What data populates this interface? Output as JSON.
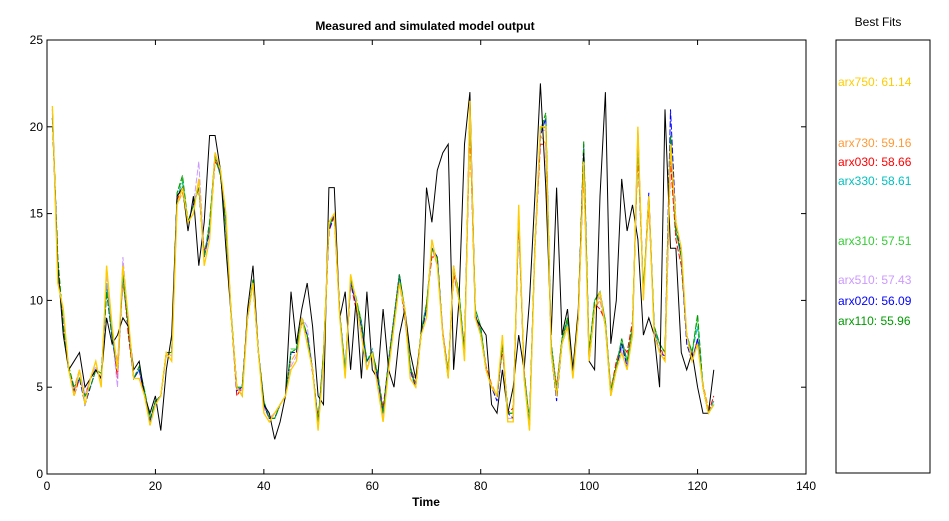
{
  "chart_data": {
    "type": "line",
    "title": "Measured and simulated model output",
    "xlabel": "Time",
    "ylabel": "",
    "xlim": [
      0,
      140
    ],
    "ylim": [
      0,
      25
    ],
    "xticks": [
      "0",
      "20",
      "40",
      "60",
      "80",
      "100",
      "120",
      "140"
    ],
    "yticks": [
      "0",
      "5",
      "10",
      "15",
      "20",
      "25"
    ],
    "grid": false,
    "legend_position": "right",
    "measured": {
      "color": "#000000",
      "x": [
        1,
        2,
        3,
        4,
        5,
        6,
        7,
        8,
        9,
        10,
        11,
        12,
        13,
        14,
        15,
        16,
        17,
        18,
        19,
        20,
        21,
        22,
        23,
        24,
        25,
        26,
        27,
        28,
        29,
        30,
        31,
        32,
        33,
        34,
        35,
        36,
        37,
        38,
        39,
        40,
        41,
        42,
        43,
        44,
        45,
        46,
        47,
        48,
        49,
        50,
        51,
        52,
        53,
        54,
        55,
        56,
        57,
        58,
        59,
        60,
        61,
        62,
        63,
        64,
        65,
        66,
        67,
        68,
        69,
        70,
        71,
        72,
        73,
        74,
        75,
        76,
        77,
        78,
        79,
        80,
        81,
        82,
        83,
        84,
        85,
        86,
        87,
        88,
        89,
        90,
        91,
        92,
        93,
        94,
        95,
        96,
        97,
        98,
        99,
        100,
        101,
        102,
        103,
        104,
        105,
        106,
        107,
        108,
        109,
        110,
        111,
        112,
        113,
        114,
        115,
        116,
        117,
        118,
        119,
        120,
        121,
        122,
        123
      ],
      "y": [
        21,
        12,
        8,
        6,
        6.5,
        7,
        5,
        5.5,
        6,
        5.5,
        9,
        7.5,
        8,
        9,
        8.5,
        6,
        6.5,
        4.5,
        3.5,
        4.5,
        2.5,
        6,
        8,
        16,
        16.5,
        14,
        16,
        12,
        14.5,
        19.5,
        19.5,
        17.5,
        13,
        9,
        5,
        4.5,
        9.5,
        12,
        7,
        4,
        3.5,
        2,
        3,
        4.5,
        10.5,
        7.5,
        9.5,
        11,
        8.5,
        4.5,
        4,
        16.5,
        16.5,
        9,
        10.5,
        6,
        10,
        5.5,
        10.5,
        6,
        5.5,
        9.5,
        6,
        5,
        8,
        9.5,
        7,
        5.5,
        8,
        16.5,
        14.5,
        17.5,
        18.5,
        19,
        6,
        10,
        19,
        22,
        9,
        8.5,
        8,
        4,
        3.5,
        6,
        3.5,
        5,
        8,
        6,
        10,
        16,
        22.5,
        16.5,
        8,
        16.5,
        8,
        9.5,
        6,
        9.5,
        18.5,
        6.5,
        6,
        16,
        22,
        7.5,
        10,
        17,
        14,
        15.5,
        13.5,
        8,
        9,
        8,
        5,
        21,
        13,
        13,
        7,
        6,
        7,
        5,
        3.5,
        3.5,
        6
      ]
    },
    "series": [
      {
        "name": "arx750",
        "fit": "61.14",
        "label": "arx750: 61.14",
        "color": "#FFCC00",
        "y": [
          21.2,
          11,
          9.5,
          6,
          4.5,
          6,
          4,
          5.5,
          6.5,
          5,
          12,
          8.5,
          6,
          12,
          9,
          5.5,
          5.5,
          4.5,
          2.8,
          4,
          4.5,
          7,
          6.5,
          15.5,
          16.5,
          14.5,
          15,
          17,
          12,
          13.5,
          18.5,
          17.5,
          15,
          9,
          5,
          4.5,
          9,
          11,
          7,
          3.5,
          3,
          3.5,
          4,
          4.5,
          6,
          6.5,
          9,
          7.5,
          6,
          2.5,
          6.5,
          14.5,
          15,
          9,
          5.5,
          11.5,
          10,
          8,
          6,
          7,
          5,
          3,
          6,
          8.5,
          11,
          9.5,
          5.5,
          5,
          8,
          9,
          13.5,
          12,
          8,
          5.5,
          12,
          10,
          6.5,
          21.5,
          9,
          8,
          6,
          5,
          4.5,
          8,
          3,
          3,
          15.5,
          5.5,
          2.5,
          13,
          20,
          20,
          7,
          4.5,
          7.5,
          8.5,
          5.5,
          9,
          18,
          6.5,
          9.5,
          10.5,
          8.5,
          4.5,
          6,
          7,
          6,
          8,
          20,
          10,
          16,
          8,
          7,
          6.5,
          19,
          14.5,
          13,
          8,
          6.5,
          7.5,
          5,
          3.5,
          4,
          6.5
        ]
      },
      {
        "name": "arx730",
        "fit": "59.16",
        "label": "arx730: 59.16",
        "color": "#FF9933",
        "y": [
          20.8,
          11.5,
          9,
          6,
          5,
          6,
          4.5,
          5.5,
          6,
          5.5,
          11,
          8,
          6.5,
          11,
          8.5,
          5.5,
          6,
          4.5,
          3,
          4.2,
          4.5,
          6.8,
          7,
          15.5,
          16.2,
          14.5,
          15.5,
          16.5,
          12.5,
          14,
          18.2,
          17.2,
          14.5,
          9,
          5,
          4.8,
          9.2,
          11,
          7,
          3.8,
          3.2,
          3.5,
          4,
          4.5,
          6.5,
          7,
          8.8,
          8,
          6,
          3,
          6.5,
          14.2,
          14.8,
          9,
          6,
          11,
          10,
          8,
          6.5,
          7,
          5.5,
          3.5,
          6.5,
          8.8,
          11,
          9,
          6,
          5.5,
          8,
          9.5,
          13,
          12,
          8.2,
          6,
          11.5,
          10,
          7,
          20.5,
          9,
          8,
          6.2,
          5.2,
          4.5,
          7.5,
          3.5,
          3.5,
          14.8,
          5.8,
          3,
          13,
          19.5,
          19,
          7.5,
          5,
          7.5,
          8.5,
          6,
          9,
          18,
          7,
          9.5,
          10,
          8.5,
          5,
          6.2,
          7.5,
          6.5,
          8.5,
          19,
          10.5,
          15.5,
          8.2,
          7.5,
          7,
          18.5,
          14,
          12.5,
          8,
          6.8,
          7.5,
          5.2,
          3.8,
          4.2,
          6.2
        ]
      },
      {
        "name": "arx030",
        "fit": "58.66",
        "label": "arx030: 58.66",
        "color": "#FF0000",
        "y": [
          20.5,
          12,
          8.5,
          6,
          4.5,
          5.5,
          4.5,
          5.5,
          6,
          5.5,
          11,
          8,
          5.5,
          11.5,
          8,
          5.5,
          6,
          4.5,
          3,
          4.2,
          4.5,
          7,
          7,
          15.8,
          16.5,
          14.5,
          15.5,
          16.5,
          12.8,
          14,
          18,
          17.5,
          14.5,
          9,
          4.5,
          5,
          9.2,
          11,
          7,
          4,
          3.2,
          3.5,
          4,
          4.5,
          7,
          7,
          8.8,
          8,
          5.8,
          3.2,
          6.5,
          14,
          14.8,
          9.2,
          5.8,
          11,
          9.5,
          8.5,
          6.5,
          7,
          5.8,
          3.8,
          6.5,
          9,
          11.5,
          9.2,
          6.2,
          5.2,
          8,
          9.8,
          12.5,
          12.5,
          8.2,
          5.8,
          11.5,
          10.2,
          7.2,
          20,
          9.2,
          8.2,
          6.2,
          5,
          4.5,
          7.2,
          3.5,
          3.8,
          14.5,
          6,
          3,
          13,
          19,
          19,
          7.5,
          5,
          7.8,
          8.8,
          6,
          9,
          17.5,
          7,
          9.8,
          9.5,
          8.8,
          4.8,
          6.5,
          7.5,
          7,
          8.8,
          18.5,
          10.5,
          15.5,
          8.5,
          7.5,
          6.5,
          18,
          13.5,
          12,
          8,
          6.5,
          7.8,
          5,
          3.5,
          4.5,
          6
        ]
      },
      {
        "name": "arx330",
        "fit": "58.61",
        "label": "arx330: 58.61",
        "color": "#00BFBF",
        "y": [
          20.5,
          12,
          8.8,
          6,
          5,
          5.5,
          4.5,
          5,
          6,
          5.5,
          11,
          7.8,
          6,
          11.5,
          8.5,
          5.5,
          6,
          4.8,
          3,
          4.2,
          4.5,
          7,
          7,
          16,
          16.8,
          14.5,
          15.5,
          16.8,
          12.5,
          14.2,
          18.5,
          17.2,
          14.5,
          9.2,
          5,
          5,
          9,
          11.2,
          7.2,
          4,
          3.2,
          3.2,
          4,
          4.5,
          7,
          7.2,
          9,
          8,
          6,
          3,
          6.8,
          14.2,
          15,
          9.2,
          6,
          11,
          10,
          8.5,
          6.5,
          7.2,
          5.5,
          3.5,
          6.5,
          9,
          11.2,
          9.5,
          6,
          5,
          8.2,
          9.5,
          13,
          12.5,
          8,
          5.8,
          11.8,
          10.2,
          7,
          20.8,
          9.2,
          8.2,
          6,
          5,
          4.5,
          7.5,
          3.5,
          3.5,
          15,
          5.8,
          3,
          13.2,
          19.8,
          20,
          7.5,
          4.8,
          7.5,
          8.8,
          6,
          9.2,
          18.5,
          7,
          10,
          10.5,
          8.5,
          4.8,
          6.2,
          7.5,
          6.5,
          8.5,
          19,
          10.5,
          16,
          8.2,
          7.5,
          7,
          19,
          14,
          12.5,
          8,
          7,
          8.5,
          5,
          3.5,
          4.2,
          6.5
        ]
      },
      {
        "name": "arx310",
        "fit": "57.51",
        "label": "arx310: 57.51",
        "color": "#33CC33",
        "y": [
          20.5,
          12.5,
          8.5,
          6.2,
          5,
          5.5,
          4.5,
          5,
          6,
          5.8,
          10.5,
          8,
          6,
          11.5,
          8.5,
          5.5,
          6.2,
          4.8,
          3.2,
          4.2,
          4.5,
          7,
          7,
          16.2,
          17,
          14.5,
          15.5,
          16.5,
          12.5,
          14.5,
          18.5,
          17.2,
          14.2,
          9.2,
          5,
          5,
          9,
          11.2,
          7,
          4.2,
          3.2,
          3.2,
          4,
          4.5,
          7.2,
          7.2,
          9,
          8,
          6,
          3,
          7,
          14.2,
          15,
          9.2,
          6,
          11.2,
          10.2,
          8.8,
          6.5,
          7,
          5.8,
          3.5,
          6.5,
          9,
          11.5,
          9.5,
          6.2,
          5,
          8.2,
          9.8,
          13,
          12.5,
          8,
          5.8,
          11.8,
          10.5,
          7,
          21,
          9.5,
          8.5,
          6,
          5,
          4.5,
          7.5,
          3.5,
          3.5,
          15,
          5.8,
          3,
          13.2,
          19.8,
          20.5,
          7.5,
          4.8,
          7.8,
          9,
          6,
          9.2,
          18.8,
          7,
          10,
          10.5,
          8.8,
          4.8,
          6.2,
          7.8,
          6.5,
          8.5,
          19.2,
          10.5,
          16,
          8.5,
          7.5,
          7,
          19.5,
          14,
          12.5,
          8,
          7,
          9,
          5,
          3.5,
          4,
          6.5
        ]
      },
      {
        "name": "arx510",
        "fit": "57.43",
        "label": "arx510: 57.43",
        "color": "#CC99FF",
        "y": [
          20.8,
          11.5,
          9,
          6,
          4.8,
          6,
          4.5,
          5.5,
          6.2,
          5.2,
          11.5,
          8,
          5,
          12.5,
          8.8,
          5.5,
          5.5,
          4.5,
          2.8,
          4,
          4.5,
          7,
          6.8,
          15.5,
          16.5,
          14.5,
          15.5,
          18,
          12.5,
          13.8,
          18.5,
          17.5,
          14.8,
          9,
          5,
          4.8,
          9,
          11,
          7,
          3.8,
          3.2,
          3.5,
          4,
          4.5,
          6.2,
          6.8,
          9,
          8.5,
          6,
          2.8,
          6.5,
          14.5,
          15,
          9,
          5.8,
          11.2,
          10,
          8,
          6.2,
          7,
          5.2,
          3.2,
          6.2,
          8.5,
          11,
          9.5,
          5.8,
          5,
          8,
          9.2,
          13.5,
          12,
          8.2,
          5.5,
          11.8,
          10,
          6.8,
          21,
          9,
          8,
          6,
          5,
          4.5,
          7.8,
          3.2,
          3.2,
          15.2,
          5.5,
          2.8,
          13,
          19.8,
          19.8,
          7.2,
          4.8,
          7.5,
          8.5,
          5.8,
          9,
          18.2,
          6.8,
          9.5,
          10.2,
          8.5,
          4.8,
          6,
          7.2,
          6.2,
          8,
          19.5,
          10.2,
          16,
          8.2,
          7,
          6.8,
          19,
          14.5,
          13,
          8,
          6.8,
          7.5,
          5,
          3.5,
          4,
          6.5
        ]
      },
      {
        "name": "arx020",
        "fit": "56.09",
        "label": "arx020: 56.09",
        "color": "#0000FF",
        "y": [
          20.5,
          12,
          8.5,
          6,
          4.8,
          5.5,
          4,
          5,
          6,
          5.5,
          10.5,
          7.8,
          6,
          11.5,
          8.5,
          5.5,
          6,
          4.5,
          3,
          4.2,
          4.5,
          7,
          7,
          16,
          16.5,
          14.5,
          15.5,
          16.5,
          12.5,
          14,
          18.5,
          17.2,
          14.5,
          9,
          4.8,
          5,
          9,
          11,
          7,
          4,
          3.2,
          3.2,
          4,
          4.5,
          7,
          7,
          8.8,
          8,
          6,
          3,
          6.8,
          14,
          15,
          9.2,
          5.8,
          11,
          9.8,
          8.5,
          6.5,
          7,
          5.5,
          3.5,
          6.5,
          9,
          11.5,
          9.2,
          6,
          5,
          8,
          9.5,
          13,
          12.5,
          8,
          5.5,
          12,
          10,
          7,
          21.5,
          9.2,
          8,
          6,
          5,
          4.2,
          7.5,
          3.5,
          3.2,
          15,
          5.5,
          2.8,
          13,
          19.5,
          20.5,
          7,
          4.2,
          7.5,
          8.5,
          5.8,
          9,
          19,
          6.5,
          9.5,
          10.5,
          8.5,
          4.5,
          6,
          7.5,
          6.2,
          8,
          19.8,
          10.2,
          16.2,
          8.2,
          7,
          6.8,
          21,
          14.5,
          12.5,
          7.5,
          6.5,
          7.8,
          5,
          3.5,
          4,
          6.5
        ]
      },
      {
        "name": "arx110",
        "fit": "55.96",
        "label": "arx110: 55.96",
        "color": "#009900",
        "y": [
          20.5,
          12.5,
          8.5,
          6.2,
          5,
          5.5,
          4.5,
          5,
          6,
          5.8,
          10.5,
          8,
          6,
          11.5,
          8.5,
          5.5,
          6.2,
          4.8,
          3.2,
          4.2,
          4.5,
          7,
          7,
          16.2,
          17.2,
          14.5,
          15.5,
          16.5,
          12.5,
          14.5,
          18.2,
          17.2,
          14.2,
          9.2,
          5,
          5,
          9,
          11.2,
          7,
          4.2,
          3.2,
          3.2,
          4,
          4.5,
          7,
          7.2,
          9,
          8,
          6,
          3,
          7,
          14.2,
          15,
          9.2,
          6,
          11.2,
          10,
          8.8,
          6.5,
          7,
          5.8,
          3.5,
          6.5,
          9,
          11.5,
          9.5,
          6.2,
          5,
          8.2,
          9.8,
          13,
          12.5,
          8,
          5.8,
          11.8,
          10.5,
          7,
          21,
          9.5,
          8.5,
          6,
          5,
          4.5,
          7.5,
          3.5,
          3.5,
          15,
          5.8,
          3,
          13.2,
          19.8,
          20.8,
          7.5,
          4.8,
          7.8,
          9,
          6,
          9.2,
          19.2,
          7,
          10,
          10.5,
          8.8,
          4.8,
          6.2,
          7.8,
          6.5,
          8.5,
          19.2,
          10.5,
          16,
          8.5,
          7.5,
          7,
          19.5,
          14,
          12.5,
          8,
          7,
          9.2,
          5,
          3.5,
          4,
          6.5
        ]
      }
    ]
  },
  "legend": {
    "title": "Best Fits"
  }
}
